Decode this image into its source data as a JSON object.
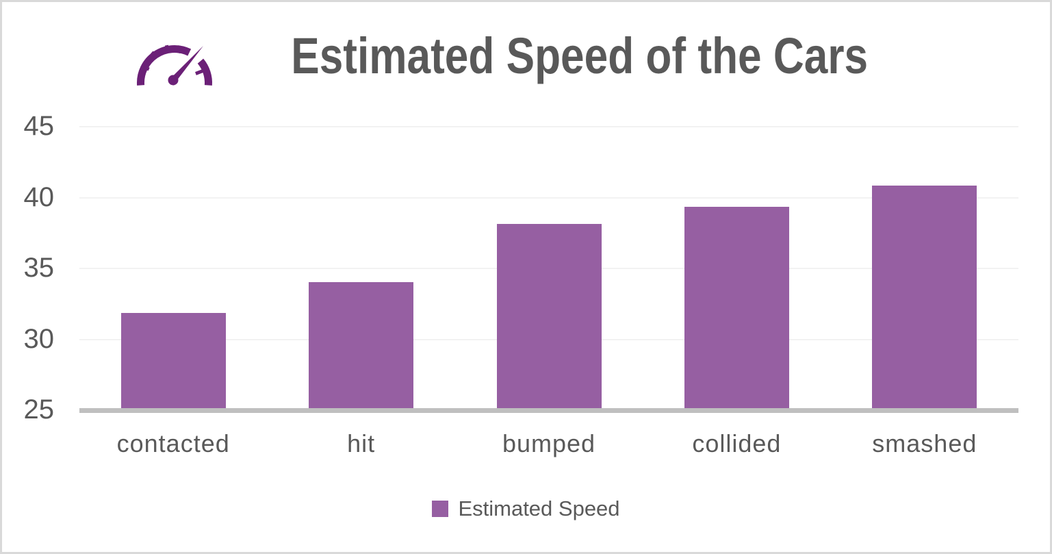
{
  "page": {
    "background_color": "#FFFFFF",
    "frame_border_color": "#D9D9D9"
  },
  "header": {
    "title": "Estimated Speed of the Cars",
    "title_color": "#595959",
    "icon": "speedometer-icon",
    "icon_color": "#6B2077"
  },
  "chart_data": {
    "type": "bar",
    "title": "Estimated Speed of the Cars",
    "categories": [
      "contacted",
      "hit",
      "bumped",
      "collided",
      "smashed"
    ],
    "series": [
      {
        "name": "Estimated Speed",
        "values": [
          31.8,
          34.0,
          38.1,
          39.3,
          40.8
        ]
      }
    ],
    "xlabel": "",
    "ylabel": "",
    "ylim": [
      25,
      45
    ],
    "yticks": [
      45,
      40,
      35,
      30,
      25
    ],
    "grid": "horizontal-light",
    "legend_position": "bottom",
    "bar_color": "#965FA2",
    "gridline_color": "#F2F2F2",
    "axis_line_color": "#BFBFBF",
    "tick_label_color": "#595959"
  },
  "legend": {
    "items": [
      {
        "label": "Estimated Speed",
        "color": "#965FA2"
      }
    ]
  }
}
